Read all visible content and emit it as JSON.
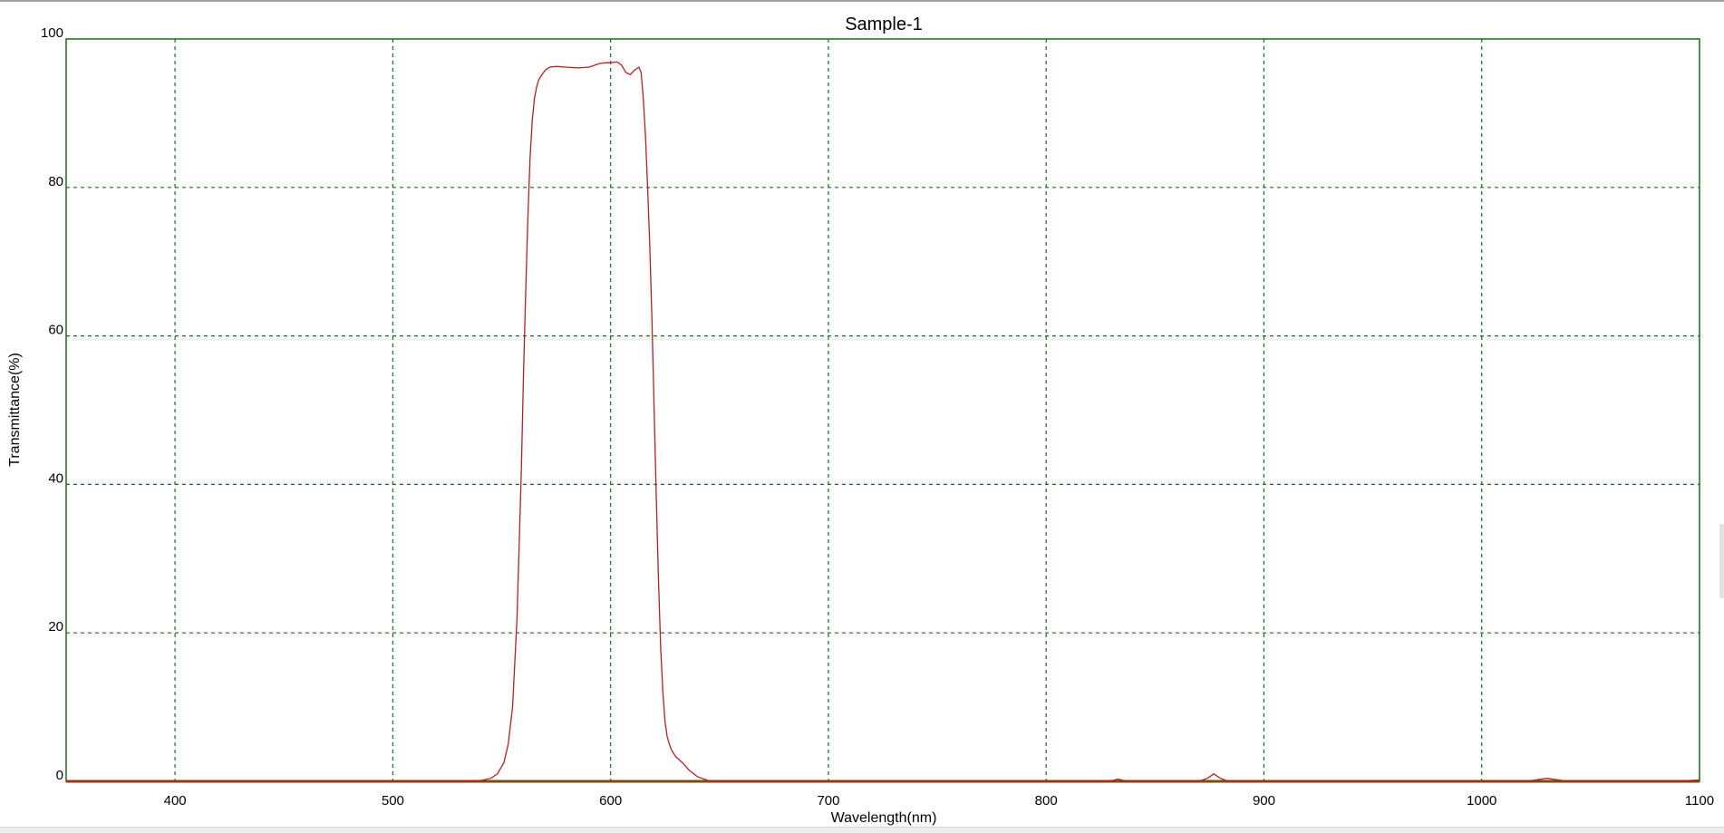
{
  "chart_data": {
    "type": "line",
    "title": "Sample-1",
    "xlabel": "Wavelength(nm)",
    "ylabel": "Transmittance(%)",
    "xlim": [
      350,
      1100
    ],
    "ylim": [
      0,
      100
    ],
    "xticks": [
      400,
      500,
      600,
      700,
      800,
      900,
      1000,
      1100
    ],
    "yticks": [
      0,
      20,
      40,
      60,
      80,
      100
    ],
    "grid": true,
    "colors": {
      "series": "#b22222",
      "grid": "#1a6b1a",
      "frame": "#1a6b1a",
      "baseline": "#7a4a10"
    },
    "series": [
      {
        "x": [
          350,
          500,
          530,
          540,
          545,
          548,
          551,
          553,
          555,
          557,
          559,
          560,
          561,
          562,
          563,
          564,
          565,
          566,
          567,
          568,
          570,
          572,
          575,
          580,
          585,
          590,
          595,
          598,
          600,
          603,
          605,
          607,
          609,
          611,
          613,
          614,
          615,
          616,
          617,
          618,
          619,
          620,
          621,
          622,
          623,
          624,
          625,
          626,
          627,
          628,
          630,
          633,
          636,
          640,
          645,
          650,
          700,
          825,
          830,
          833,
          836,
          840,
          870,
          874,
          877,
          880,
          884,
          890,
          1020,
          1025,
          1030,
          1035,
          1040,
          1090,
          1095,
          1100
        ],
        "y": [
          0,
          0,
          0,
          0.1,
          0.4,
          1,
          2.5,
          5,
          10,
          22,
          42,
          55,
          66,
          76,
          84,
          89,
          92,
          93.5,
          94.5,
          95,
          95.8,
          96.2,
          96.3,
          96.2,
          96.1,
          96.2,
          96.7,
          96.8,
          96.8,
          96.9,
          96.5,
          95.5,
          95.2,
          95.8,
          96.2,
          95.5,
          92,
          87,
          80,
          72,
          62,
          50,
          38,
          27,
          18,
          12,
          8,
          6,
          5,
          4.2,
          3.3,
          2.5,
          1.5,
          0.6,
          0.1,
          0,
          0,
          0,
          0.1,
          0.3,
          0.1,
          0,
          0,
          0.4,
          1,
          0.4,
          0,
          0,
          0,
          0.2,
          0.4,
          0.2,
          0,
          0,
          0.1,
          0.2
        ]
      }
    ]
  }
}
